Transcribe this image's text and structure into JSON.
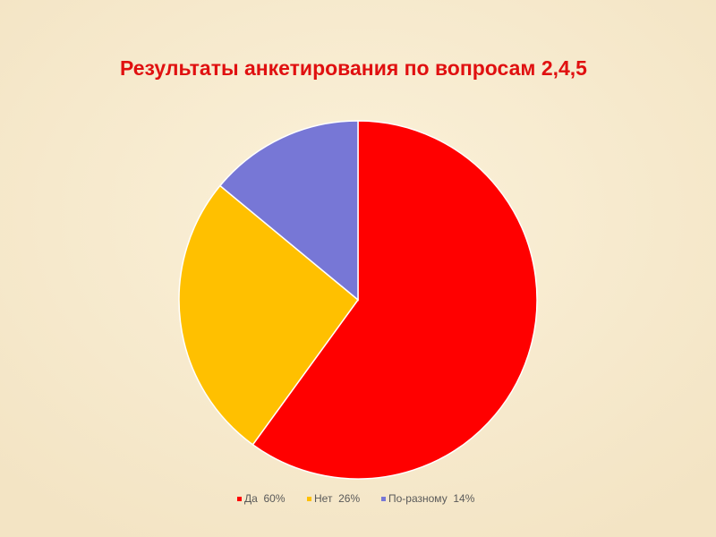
{
  "chart_data": {
    "type": "pie",
    "title": "Результаты анкетирования по вопросам 2,4,5",
    "categories": [
      "Да  60%",
      "Нет  26%",
      "По-разному  14%"
    ],
    "values": [
      60,
      26,
      14
    ],
    "colors": [
      "#ff0000",
      "#ffc000",
      "#7777d6"
    ],
    "legend": "bottom"
  }
}
